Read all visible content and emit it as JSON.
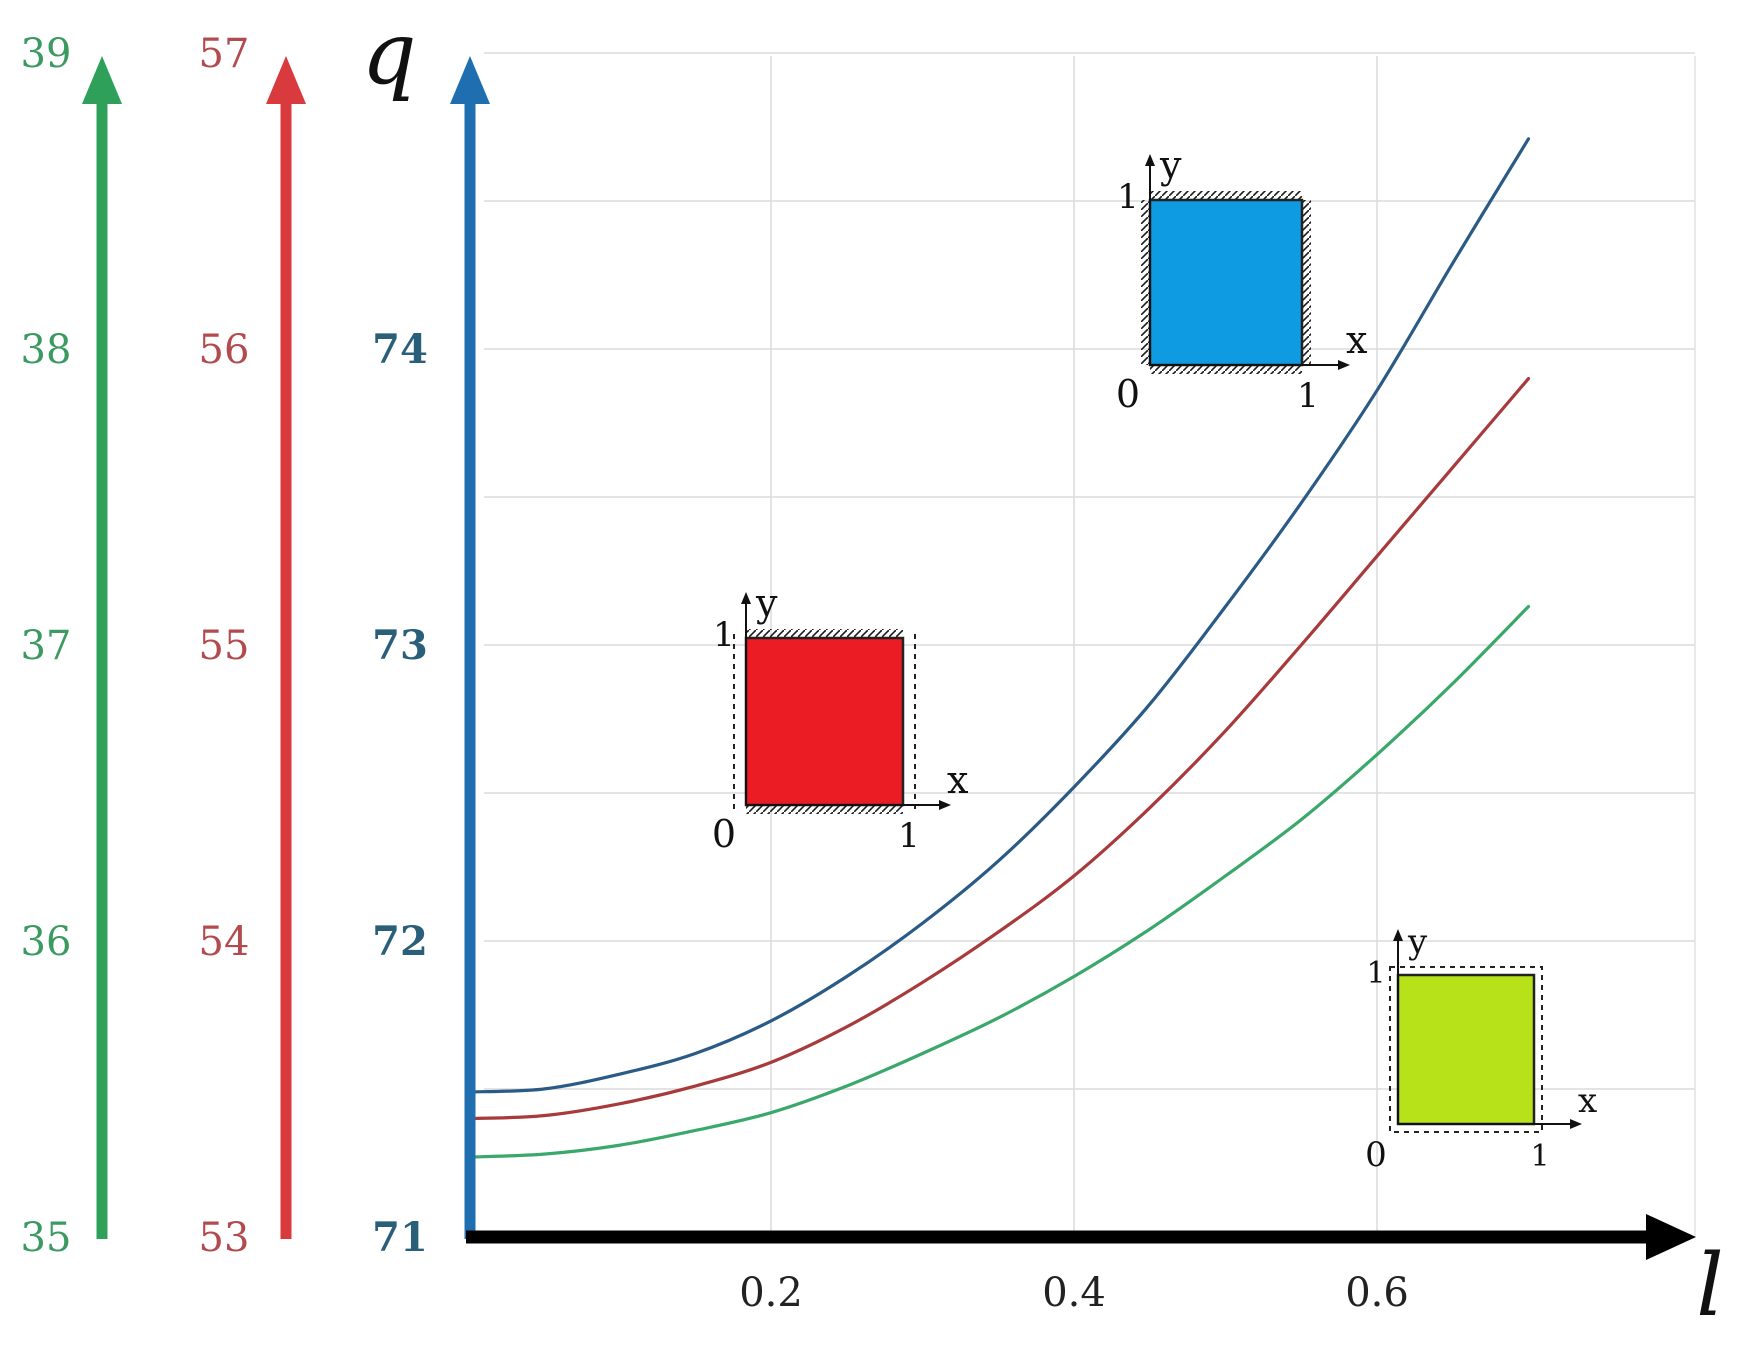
{
  "chart_data": {
    "type": "line",
    "xlabel": "l",
    "ylabel": "q",
    "xlim": [
      0,
      0.7
    ],
    "x_ticks": [
      {
        "value": 0.2,
        "label": "0.2"
      },
      {
        "value": 0.4,
        "label": "0.4"
      },
      {
        "value": 0.6,
        "label": "0.6"
      }
    ],
    "grid": true,
    "y_axes": [
      {
        "key": "blue",
        "color": "#1f6fb0",
        "label_color": "#2a5f7a",
        "ticks": [
          "71",
          "72",
          "73",
          "74"
        ],
        "ylim": [
          71,
          75
        ]
      },
      {
        "key": "red",
        "color": "#d83a3e",
        "label_color": "#b24a4e",
        "ticks": [
          "53",
          "54",
          "55",
          "56",
          "57"
        ],
        "ylim": [
          53,
          57
        ]
      },
      {
        "key": "green",
        "color": "#2fa05a",
        "label_color": "#3a9a60",
        "ticks": [
          "35",
          "36",
          "37",
          "38",
          "39"
        ],
        "ylim": [
          35,
          39
        ]
      }
    ],
    "series": [
      {
        "axis": "blue",
        "color": "#2a5a86",
        "x": [
          0,
          0.05,
          0.1,
          0.15,
          0.2,
          0.25,
          0.3,
          0.35,
          0.4,
          0.45,
          0.5,
          0.55,
          0.6,
          0.65,
          0.7
        ],
        "y": [
          71.49,
          71.5,
          71.55,
          71.62,
          71.73,
          71.88,
          72.06,
          72.27,
          72.52,
          72.8,
          73.13,
          73.48,
          73.86,
          74.29,
          74.71
        ]
      },
      {
        "axis": "red",
        "color": "#a83a3c",
        "x": [
          0,
          0.05,
          0.1,
          0.15,
          0.2,
          0.25,
          0.3,
          0.35,
          0.4,
          0.45,
          0.5,
          0.55,
          0.6,
          0.65,
          0.7
        ],
        "y": [
          53.4,
          53.41,
          53.45,
          53.51,
          53.59,
          53.71,
          53.86,
          54.03,
          54.22,
          54.45,
          54.71,
          55.0,
          55.3,
          55.6,
          55.9
        ]
      },
      {
        "axis": "green",
        "color": "#3aa86a",
        "x": [
          0,
          0.05,
          0.1,
          0.15,
          0.2,
          0.25,
          0.3,
          0.35,
          0.4,
          0.45,
          0.5,
          0.55,
          0.6,
          0.65,
          0.7
        ],
        "y": [
          35.27,
          35.28,
          35.31,
          35.36,
          35.42,
          35.51,
          35.62,
          35.74,
          35.88,
          36.04,
          36.22,
          36.41,
          36.63,
          36.87,
          37.13
        ]
      }
    ],
    "insets": [
      {
        "name": "blue-square",
        "fill": "#0e9be2",
        "border": "clamped all edges",
        "labels": {
          "y": "y",
          "x": "x",
          "top": "1",
          "origin": "0",
          "right": "1"
        }
      },
      {
        "name": "red-square",
        "fill": "#ec1c24",
        "border": "clamped top/bottom, free left/right",
        "labels": {
          "y": "y",
          "x": "x",
          "top": "1",
          "origin": "0",
          "right": "1"
        }
      },
      {
        "name": "green-square",
        "fill": "#b7e21a",
        "border": "free all edges",
        "labels": {
          "y": "y",
          "x": "x",
          "top": "1",
          "origin": "0",
          "right": "1"
        }
      }
    ]
  }
}
